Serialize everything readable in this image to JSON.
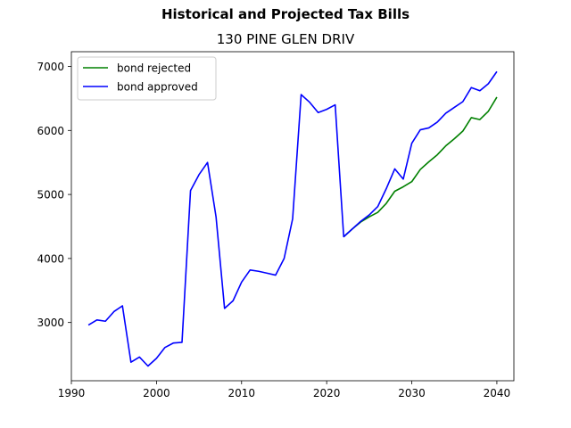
{
  "header": {
    "title": "Historical and Projected Tax Bills",
    "subtitle": "130 PINE GLEN DRIV"
  },
  "chart_data": {
    "type": "line",
    "title": "Historical and Projected Tax Bills",
    "subtitle": "130 PINE GLEN DRIV",
    "xlabel": "",
    "ylabel": "",
    "xlim": [
      1990,
      2042
    ],
    "ylim": [
      2090,
      7230
    ],
    "xticks": [
      1990,
      2000,
      2010,
      2020,
      2030,
      2040
    ],
    "yticks": [
      3000,
      4000,
      5000,
      6000,
      7000
    ],
    "grid": false,
    "legend_position": "top-left",
    "series": [
      {
        "name": "bond rejected",
        "color": "#008000",
        "x": [
          2022,
          2023,
          2024,
          2025,
          2026,
          2027,
          2028,
          2029,
          2030,
          2031,
          2032,
          2033,
          2034,
          2035,
          2036,
          2037,
          2038,
          2039,
          2040
        ],
        "y": [
          4340,
          4460,
          4570,
          4650,
          4720,
          4860,
          5050,
          5120,
          5200,
          5390,
          5510,
          5620,
          5760,
          5870,
          5990,
          6200,
          6170,
          6300,
          6520
        ]
      },
      {
        "name": "bond approved",
        "color": "#0000ff",
        "x": [
          1992,
          1993,
          1994,
          1995,
          1996,
          1997,
          1998,
          1999,
          2000,
          2001,
          2002,
          2003,
          2004,
          2005,
          2006,
          2007,
          2008,
          2009,
          2010,
          2011,
          2012,
          2013,
          2014,
          2015,
          2016,
          2017,
          2018,
          2019,
          2020,
          2021,
          2022,
          2023,
          2024,
          2025,
          2026,
          2027,
          2028,
          2029,
          2030,
          2031,
          2032,
          2033,
          2034,
          2035,
          2036,
          2037,
          2038,
          2039,
          2040
        ],
        "y": [
          2960,
          3040,
          3020,
          3170,
          3260,
          2380,
          2460,
          2320,
          2440,
          2610,
          2680,
          2690,
          5060,
          5310,
          5500,
          4650,
          3220,
          3340,
          3630,
          3820,
          3800,
          3770,
          3740,
          4000,
          4620,
          6560,
          6440,
          6280,
          6330,
          6400,
          4340,
          4460,
          4580,
          4680,
          4810,
          5090,
          5400,
          5240,
          5800,
          6010,
          6040,
          6130,
          6270,
          6360,
          6450,
          6670,
          6620,
          6730,
          6920
        ]
      }
    ]
  }
}
